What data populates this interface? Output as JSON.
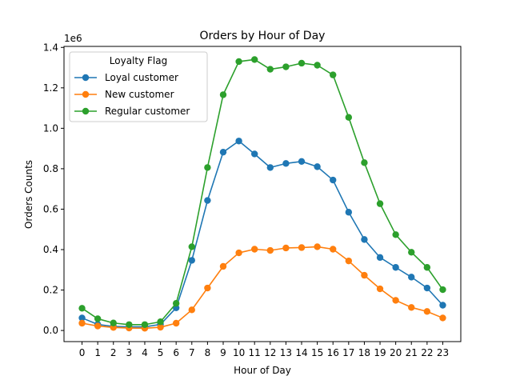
{
  "chart_data": {
    "type": "line",
    "title": "Orders by Hour of Day",
    "xlabel": "Hour of Day",
    "ylabel": "Orders Counts",
    "y_multiplier_label": "1e6",
    "xlim": [
      -1.15,
      24.15
    ],
    "ylim": [
      -0.055,
      1.405
    ],
    "y_ticks": [
      0.0,
      0.2,
      0.4,
      0.6,
      0.8,
      1.0,
      1.2,
      1.4
    ],
    "y_tick_labels": [
      "0.0",
      "0.2",
      "0.4",
      "0.6",
      "0.8",
      "1.0",
      "1.2",
      "1.4"
    ],
    "x": [
      0,
      1,
      2,
      3,
      4,
      5,
      6,
      7,
      8,
      9,
      10,
      11,
      12,
      13,
      14,
      15,
      16,
      17,
      18,
      19,
      20,
      21,
      22,
      23
    ],
    "x_tick_labels": [
      "0",
      "1",
      "2",
      "3",
      "4",
      "5",
      "6",
      "7",
      "8",
      "9",
      "10",
      "11",
      "12",
      "13",
      "14",
      "15",
      "16",
      "17",
      "18",
      "19",
      "20",
      "21",
      "22",
      "23"
    ],
    "grid": false,
    "legend": {
      "title": "Loyalty Flag",
      "placement": "top-left"
    },
    "series": [
      {
        "name": "Loyal customer",
        "color": "#1f77b4",
        "values": [
          0.062,
          0.03,
          0.02,
          0.018,
          0.018,
          0.03,
          0.112,
          0.347,
          0.643,
          0.882,
          0.937,
          0.873,
          0.806,
          0.826,
          0.836,
          0.81,
          0.744,
          0.585,
          0.45,
          0.361,
          0.312,
          0.264,
          0.21,
          0.125
        ]
      },
      {
        "name": "New customer",
        "color": "#ff7f0e",
        "values": [
          0.036,
          0.022,
          0.015,
          0.012,
          0.011,
          0.016,
          0.036,
          0.102,
          0.21,
          0.317,
          0.384,
          0.402,
          0.396,
          0.408,
          0.41,
          0.414,
          0.402,
          0.344,
          0.273,
          0.206,
          0.149,
          0.114,
          0.094,
          0.062
        ]
      },
      {
        "name": "Regular customer",
        "color": "#2ca02c",
        "values": [
          0.11,
          0.058,
          0.037,
          0.029,
          0.029,
          0.043,
          0.134,
          0.414,
          0.806,
          1.166,
          1.33,
          1.34,
          1.292,
          1.304,
          1.322,
          1.312,
          1.264,
          1.054,
          0.83,
          0.627,
          0.474,
          0.387,
          0.312,
          0.202
        ]
      }
    ]
  }
}
